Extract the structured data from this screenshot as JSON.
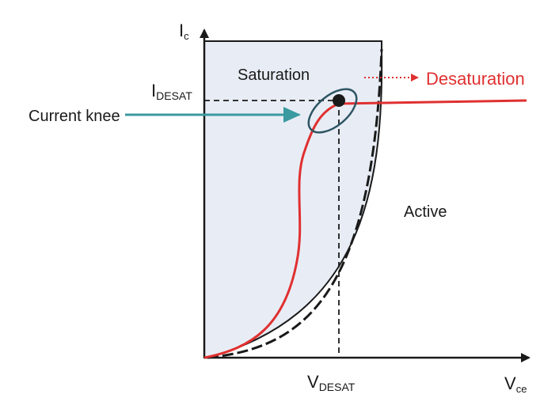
{
  "axes": {
    "y_main": "I",
    "y_sub": "c",
    "x_main": "V",
    "x_sub": "ce"
  },
  "markers": {
    "i_desat_main": "I",
    "i_desat_sub": "DESAT",
    "v_desat_main": "V",
    "v_desat_sub": "DESAT"
  },
  "regions": {
    "saturation": "Saturation",
    "active": "Active",
    "desaturation": "Desaturation"
  },
  "annotations": {
    "current_knee": "Current knee"
  },
  "colors": {
    "curve_red": "#e03030",
    "knee_teal": "#3a9aa0",
    "ellipse": "#2e5563",
    "region_fill": "#e8edf5",
    "axis": "#1a1a1a"
  }
}
